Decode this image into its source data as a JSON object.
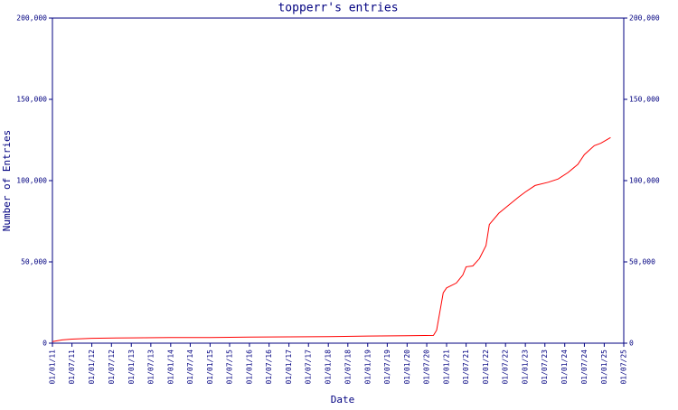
{
  "chart_data": {
    "type": "line",
    "title": "topperr's entries",
    "x_label": "Date",
    "y_label": "Number of Entries",
    "x": [
      "2011-01-01",
      "2011-04-01",
      "2011-07-01",
      "2012-01-01",
      "2013-01-01",
      "2014-01-01",
      "2015-01-01",
      "2016-01-01",
      "2017-01-01",
      "2018-01-01",
      "2019-01-01",
      "2020-01-01",
      "2020-09-01",
      "2020-10-01",
      "2020-12-01",
      "2021-01-01",
      "2021-04-01",
      "2021-06-01",
      "2021-07-01",
      "2021-09-01",
      "2021-11-01",
      "2022-01-01",
      "2022-02-01",
      "2022-05-01",
      "2022-08-01",
      "2022-11-01",
      "2023-01-01",
      "2023-04-01",
      "2023-08-01",
      "2023-11-01",
      "2024-02-01",
      "2024-05-01",
      "2024-07-01",
      "2024-10-01",
      "2024-12-01",
      "2025-03-01"
    ],
    "series": [
      {
        "name": "Entries",
        "color": "#ff0000",
        "values": [
          1000,
          2000,
          2500,
          3000,
          3300,
          3500,
          3500,
          3800,
          3900,
          4000,
          4400,
          4600,
          4800,
          8000,
          31000,
          34000,
          37000,
          42000,
          47000,
          47500,
          52000,
          60000,
          73000,
          80000,
          85000,
          90000,
          93000,
          97000,
          99000,
          101000,
          105000,
          110000,
          116000,
          121500,
          123000,
          126500
        ]
      }
    ],
    "xlim": [
      "2011-01-01",
      "2025-07-01"
    ],
    "xticks": [
      {
        "value": "2011-01-01",
        "label": "01/01/11"
      },
      {
        "value": "2011-07-01",
        "label": "01/07/11"
      },
      {
        "value": "2012-01-01",
        "label": "01/01/12"
      },
      {
        "value": "2012-07-01",
        "label": "01/07/12"
      },
      {
        "value": "2013-01-01",
        "label": "01/01/13"
      },
      {
        "value": "2013-07-01",
        "label": "01/07/13"
      },
      {
        "value": "2014-01-01",
        "label": "01/01/14"
      },
      {
        "value": "2014-07-01",
        "label": "01/07/14"
      },
      {
        "value": "2015-01-01",
        "label": "01/01/15"
      },
      {
        "value": "2015-07-01",
        "label": "01/07/15"
      },
      {
        "value": "2016-01-01",
        "label": "01/01/16"
      },
      {
        "value": "2016-07-01",
        "label": "01/07/16"
      },
      {
        "value": "2017-01-01",
        "label": "01/01/17"
      },
      {
        "value": "2017-07-01",
        "label": "01/07/17"
      },
      {
        "value": "2018-01-01",
        "label": "01/01/18"
      },
      {
        "value": "2018-07-01",
        "label": "01/07/18"
      },
      {
        "value": "2019-01-01",
        "label": "01/01/19"
      },
      {
        "value": "2019-07-01",
        "label": "01/07/19"
      },
      {
        "value": "2020-01-01",
        "label": "01/01/20"
      },
      {
        "value": "2020-07-01",
        "label": "01/07/20"
      },
      {
        "value": "2021-01-01",
        "label": "01/01/21"
      },
      {
        "value": "2021-07-01",
        "label": "01/07/21"
      },
      {
        "value": "2022-01-01",
        "label": "01/01/22"
      },
      {
        "value": "2022-07-01",
        "label": "01/07/22"
      },
      {
        "value": "2023-01-01",
        "label": "01/01/23"
      },
      {
        "value": "2023-07-01",
        "label": "01/07/23"
      },
      {
        "value": "2024-01-01",
        "label": "01/01/24"
      },
      {
        "value": "2024-07-01",
        "label": "01/07/24"
      },
      {
        "value": "2025-01-01",
        "label": "01/01/25"
      },
      {
        "value": "2025-07-01",
        "label": "01/07/25"
      }
    ],
    "ylim": [
      0,
      200000
    ],
    "yticks": [
      0,
      {
        "value": 50000,
        "label": "50,000"
      },
      {
        "value": 100000,
        "label": "100,000"
      },
      {
        "value": 150000,
        "label": "150,000"
      },
      {
        "value": 200000,
        "label": "200,000"
      }
    ],
    "axis_color": "#000080"
  }
}
